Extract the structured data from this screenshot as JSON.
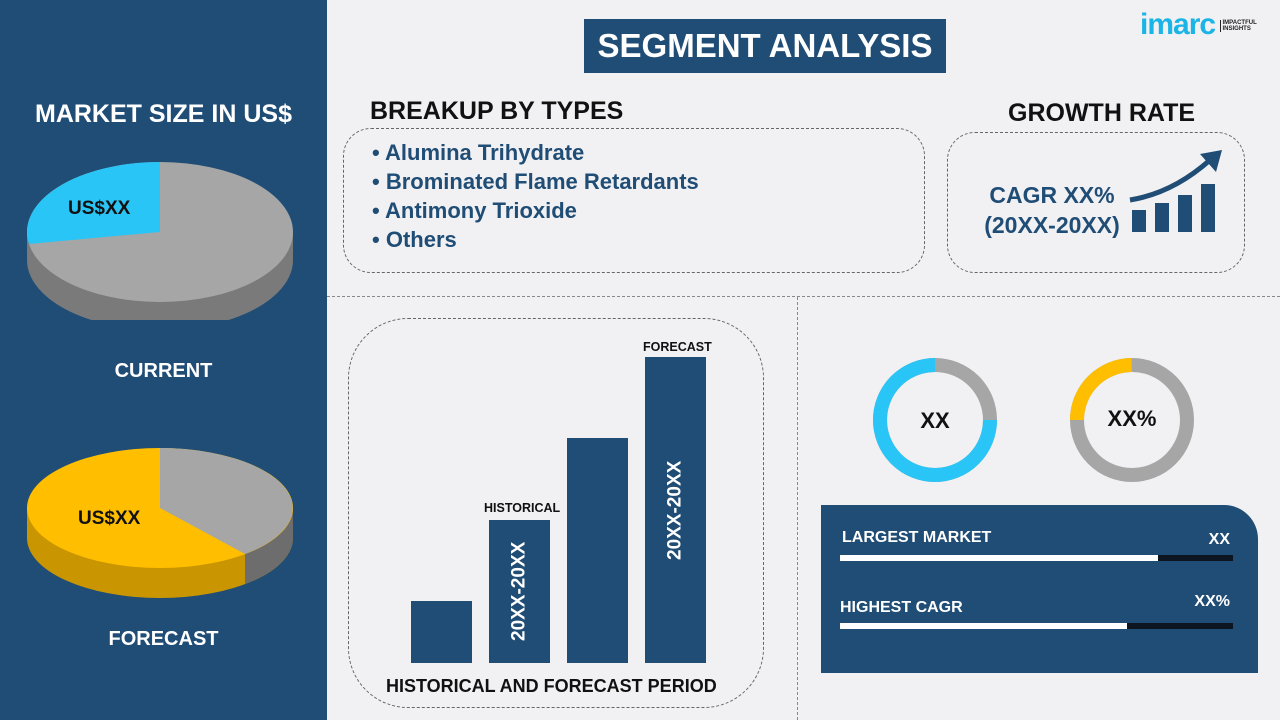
{
  "title": "SEGMENT ANALYSIS",
  "logo": {
    "brand": "imarc",
    "tagline": "IMPACTFUL INSIGHTS"
  },
  "left": {
    "heading": "MARKET SIZE IN US$",
    "current": {
      "label": "CURRENT",
      "value": "US$XX"
    },
    "forecast": {
      "label": "FORECAST",
      "value": "US$XX"
    }
  },
  "breakup": {
    "heading": "BREAKUP BY TYPES",
    "items": [
      "Alumina Trihydrate",
      "Brominated Flame Retardants",
      "Antimony Trioxide",
      "Others"
    ]
  },
  "growth": {
    "heading": "GROWTH RATE",
    "cagr": "CAGR XX%",
    "period": "(20XX-20XX)"
  },
  "bars": {
    "historical_label": "HISTORICAL",
    "forecast_label": "FORECAST",
    "historical_period": "20XX-20XX",
    "forecast_period": "20XX-20XX",
    "footer": "HISTORICAL AND FORECAST PERIOD"
  },
  "donuts": [
    {
      "value": "XX",
      "color": "#29c5f6",
      "share": 0.75
    },
    {
      "value": "XX%",
      "color": "#ffbe00",
      "share": 0.25
    }
  ],
  "stats": [
    {
      "label": "LARGEST MARKET",
      "value": "XX",
      "progress": 0.81
    },
    {
      "label": "HIGHEST CAGR",
      "value": "XX%",
      "progress": 0.73
    }
  ],
  "colors": {
    "navy": "#204d75",
    "cyan": "#29c5f6",
    "yellow": "#ffbe00",
    "gray": "#a6a6a6"
  }
}
